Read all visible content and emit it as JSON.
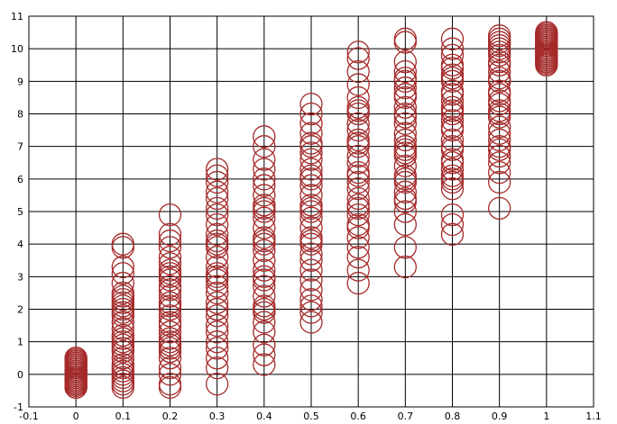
{
  "chart_data": {
    "type": "scatter",
    "title": "",
    "xlabel": "",
    "ylabel": "",
    "xlim": [
      -0.1,
      1.1
    ],
    "ylim": [
      -1,
      11
    ],
    "x_ticks": [
      "-0.1",
      "0",
      "0.1",
      "0.2",
      "0.3",
      "0.4",
      "0.5",
      "0.6",
      "0.7",
      "0.8",
      "0.9",
      "1",
      "1.1"
    ],
    "y_ticks": [
      "-1",
      "0",
      "1",
      "2",
      "3",
      "4",
      "5",
      "6",
      "7",
      "8",
      "9",
      "10",
      "11"
    ],
    "grid": true,
    "marker": "open-circle",
    "marker_color": "#a52a2a",
    "series": [
      {
        "x": 0.0,
        "y": [
          -0.4,
          -0.35,
          -0.3,
          -0.25,
          -0.2,
          -0.15,
          -0.1,
          -0.05,
          0.0,
          0.05,
          0.1,
          0.15,
          0.2,
          0.25,
          0.3,
          0.35,
          0.4,
          0.45,
          0.5,
          -0.3,
          -0.1,
          0.1,
          0.3,
          0.5,
          0.0,
          0.2,
          -0.2,
          0.4,
          -0.4,
          0.1
        ]
      },
      {
        "x": 0.1,
        "y": [
          -0.4,
          -0.3,
          -0.2,
          -0.1,
          0.0,
          0.1,
          0.3,
          0.5,
          0.7,
          0.8,
          1.0,
          1.2,
          1.4,
          1.6,
          1.8,
          1.9,
          2.0,
          2.1,
          2.2,
          2.3,
          2.5,
          2.8,
          3.1,
          3.3,
          3.9,
          4.0,
          0.2,
          0.9,
          1.1,
          2.4
        ]
      },
      {
        "x": 0.2,
        "y": [
          -0.4,
          -0.3,
          0.0,
          0.2,
          0.5,
          0.7,
          0.9,
          1.1,
          1.3,
          1.6,
          1.8,
          2.0,
          2.2,
          2.4,
          2.6,
          2.9,
          3.0,
          3.2,
          3.4,
          3.6,
          3.9,
          4.1,
          4.3,
          4.9,
          1.0,
          2.1,
          3.1,
          0.8,
          2.7,
          1.5
        ]
      },
      {
        "x": 0.3,
        "y": [
          -0.3,
          0.2,
          0.5,
          0.8,
          1.0,
          1.3,
          1.5,
          1.8,
          2.0,
          2.2,
          2.5,
          2.7,
          2.9,
          3.1,
          3.3,
          3.6,
          3.9,
          4.1,
          4.3,
          4.6,
          4.9,
          5.1,
          5.4,
          5.6,
          5.9,
          6.1,
          6.3,
          3.0,
          2.0,
          4.0
        ]
      },
      {
        "x": 0.4,
        "y": [
          0.3,
          0.6,
          0.9,
          1.3,
          1.6,
          1.9,
          2.1,
          2.4,
          2.7,
          2.9,
          3.2,
          3.5,
          3.8,
          4.0,
          4.2,
          4.5,
          4.8,
          5.0,
          5.2,
          5.5,
          5.8,
          6.0,
          6.3,
          6.6,
          7.0,
          7.3,
          4.1,
          3.0,
          5.1,
          2.0
        ]
      },
      {
        "x": 0.5,
        "y": [
          1.6,
          1.9,
          2.1,
          2.3,
          2.6,
          2.9,
          3.2,
          3.5,
          3.7,
          4.0,
          4.2,
          4.5,
          4.8,
          5.0,
          5.2,
          5.5,
          5.8,
          6.0,
          6.3,
          6.6,
          6.8,
          7.1,
          7.4,
          7.7,
          8.0,
          8.3,
          5.1,
          6.1,
          4.1,
          7.0
        ]
      },
      {
        "x": 0.6,
        "y": [
          2.8,
          3.2,
          3.6,
          3.9,
          4.2,
          4.6,
          4.9,
          5.1,
          5.4,
          5.7,
          5.9,
          6.2,
          6.5,
          6.7,
          7.0,
          7.2,
          7.5,
          7.7,
          8.0,
          8.2,
          8.5,
          8.9,
          9.3,
          9.7,
          9.9,
          5.2,
          6.1,
          7.1,
          8.1,
          4.5
        ]
      },
      {
        "x": 0.7,
        "y": [
          3.3,
          3.9,
          4.6,
          5.0,
          5.3,
          5.6,
          5.9,
          6.1,
          6.4,
          6.7,
          6.9,
          7.2,
          7.4,
          7.7,
          7.9,
          8.2,
          8.5,
          8.8,
          9.0,
          9.3,
          9.6,
          10.2,
          10.3,
          6.0,
          7.0,
          8.0,
          9.1,
          5.4,
          6.8,
          8.6
        ]
      },
      {
        "x": 0.8,
        "y": [
          4.3,
          4.6,
          4.9,
          5.7,
          6.0,
          6.3,
          6.6,
          6.9,
          7.2,
          7.5,
          7.8,
          8.1,
          8.4,
          8.7,
          9.0,
          9.2,
          9.5,
          9.8,
          10.0,
          10.3,
          6.1,
          7.0,
          8.0,
          9.1,
          8.6,
          7.6,
          6.5,
          9.4,
          5.9,
          8.2
        ]
      },
      {
        "x": 0.9,
        "y": [
          5.1,
          5.9,
          6.2,
          6.5,
          6.9,
          7.2,
          7.6,
          7.9,
          8.1,
          8.4,
          8.7,
          9.0,
          9.3,
          9.6,
          9.9,
          10.1,
          10.3,
          10.4,
          8.0,
          9.1,
          10.0,
          7.0,
          8.6,
          9.5,
          6.7,
          9.8,
          8.3,
          10.2,
          7.4,
          9.0
        ]
      },
      {
        "x": 1.0,
        "y": [
          9.5,
          9.55,
          9.6,
          9.65,
          9.7,
          9.75,
          9.8,
          9.85,
          9.9,
          9.95,
          10.0,
          10.05,
          10.1,
          10.15,
          10.2,
          10.25,
          10.3,
          10.35,
          10.4,
          10.45,
          10.5,
          9.6,
          9.8,
          10.0,
          10.2,
          10.4,
          9.7,
          9.9,
          10.1,
          10.3
        ]
      }
    ]
  }
}
